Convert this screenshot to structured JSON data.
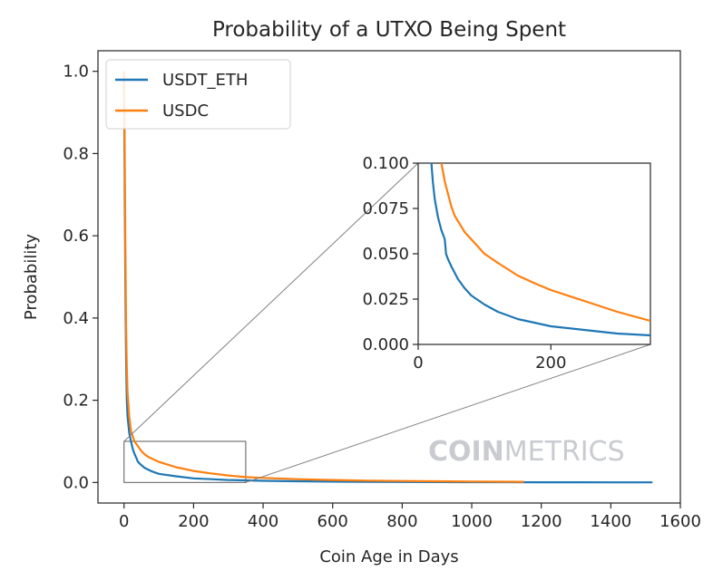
{
  "watermark": {
    "bold": "COIN",
    "light": "METRICS"
  },
  "colors": {
    "series_1": "#1f77b4",
    "series_2": "#ff7f0e",
    "connector": "#808080",
    "watermark": "#c9cbd0"
  },
  "chart_data": [
    {
      "type": "line",
      "title": "Probability of a UTXO Being Spent",
      "xlabel": "Coin Age in Days",
      "ylabel": "Probability",
      "xlim": [
        -75,
        1600
      ],
      "ylim": [
        -0.05,
        1.05
      ],
      "xticks": [
        0,
        200,
        400,
        600,
        800,
        1000,
        1200,
        1400,
        1600
      ],
      "yticks": [
        0.0,
        0.2,
        0.4,
        0.6,
        0.8,
        1.0
      ],
      "xtick_labels": [
        "0",
        "200",
        "400",
        "600",
        "800",
        "1000",
        "1200",
        "1400",
        "1600"
      ],
      "ytick_labels": [
        "0.0",
        "0.2",
        "0.4",
        "0.6",
        "0.8",
        "1.0"
      ],
      "legend": "top-left",
      "grid": false,
      "series": [
        {
          "name": "USDT_ETH",
          "x": [
            0,
            2,
            4,
            6,
            8,
            10,
            15,
            20,
            25,
            30,
            35,
            40,
            50,
            60,
            80,
            100,
            150,
            200,
            250,
            300,
            350,
            400,
            500,
            600,
            700,
            800,
            900,
            1000,
            1100,
            1200,
            1300,
            1400,
            1520
          ],
          "y": [
            1.0,
            0.7,
            0.45,
            0.3,
            0.2,
            0.16,
            0.12,
            0.1,
            0.082,
            0.07,
            0.06,
            0.05,
            0.042,
            0.035,
            0.027,
            0.021,
            0.015,
            0.01,
            0.008,
            0.006,
            0.005,
            0.004,
            0.003,
            0.002,
            0.0016,
            0.0012,
            0.001,
            0.0008,
            0.0006,
            0.0005,
            0.0004,
            0.0003,
            0.0002
          ]
        },
        {
          "name": "USDC",
          "x": [
            0,
            2,
            4,
            6,
            8,
            10,
            15,
            20,
            30,
            40,
            50,
            60,
            70,
            80,
            100,
            120,
            150,
            200,
            250,
            300,
            350,
            400,
            500,
            600,
            700,
            800,
            900,
            1000,
            1100,
            1150
          ],
          "y": [
            1.0,
            0.8,
            0.55,
            0.38,
            0.28,
            0.22,
            0.16,
            0.125,
            0.1,
            0.088,
            0.076,
            0.068,
            0.062,
            0.058,
            0.05,
            0.045,
            0.037,
            0.028,
            0.022,
            0.017,
            0.013,
            0.011,
            0.008,
            0.006,
            0.0045,
            0.0035,
            0.0028,
            0.0022,
            0.0018,
            0.0016
          ]
        }
      ],
      "zoom_box": {
        "x": [
          0,
          350
        ],
        "y": [
          0.0,
          0.1
        ]
      }
    },
    {
      "type": "line",
      "title": "",
      "xlabel": "",
      "ylabel": "",
      "xlim": [
        0,
        350
      ],
      "ylim": [
        0.0,
        0.1
      ],
      "xticks": [
        0,
        200
      ],
      "yticks": [
        0.0,
        0.025,
        0.05,
        0.075,
        0.1
      ],
      "xtick_labels": [
        "0",
        "200"
      ],
      "ytick_labels": [
        "0.000",
        "0.025",
        "0.050",
        "0.075",
        "0.100"
      ],
      "grid": false,
      "series": [
        {
          "name": "USDT_ETH",
          "x": [
            20,
            22,
            25,
            30,
            35,
            40,
            42,
            45,
            50,
            60,
            70,
            80,
            100,
            120,
            150,
            200,
            250,
            300,
            350
          ],
          "y": [
            0.1,
            0.09,
            0.08,
            0.07,
            0.063,
            0.058,
            0.05,
            0.047,
            0.043,
            0.036,
            0.031,
            0.027,
            0.022,
            0.018,
            0.014,
            0.01,
            0.008,
            0.006,
            0.005
          ]
        },
        {
          "name": "USDC",
          "x": [
            35,
            40,
            45,
            50,
            55,
            60,
            70,
            80,
            90,
            100,
            120,
            150,
            180,
            200,
            250,
            300,
            350
          ],
          "y": [
            0.1,
            0.09,
            0.083,
            0.076,
            0.071,
            0.068,
            0.062,
            0.058,
            0.054,
            0.05,
            0.045,
            0.038,
            0.033,
            0.03,
            0.024,
            0.018,
            0.013
          ]
        }
      ]
    }
  ]
}
